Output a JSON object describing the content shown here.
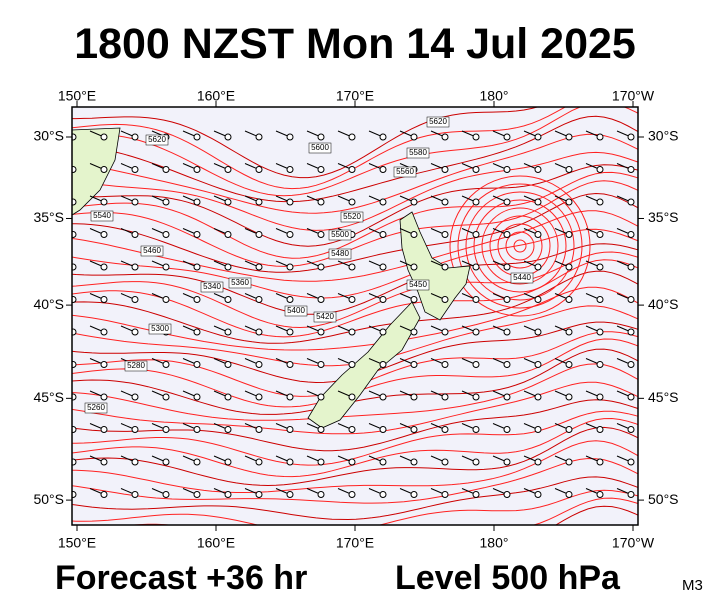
{
  "title": "1800 NZST Mon 14 Jul 2025",
  "forecast": "Forecast +36 hr",
  "level": "Level 500 hPa",
  "model": "M3",
  "lon_ticks": [
    {
      "value": 150,
      "label": "150°E"
    },
    {
      "value": 160,
      "label": "160°E"
    },
    {
      "value": 170,
      "label": "170°E"
    },
    {
      "value": 180,
      "label": "180°"
    },
    {
      "value": 190,
      "label": "170°W"
    }
  ],
  "lat_ticks": [
    {
      "value": 30,
      "label": "30°S"
    },
    {
      "value": 35,
      "label": "35°S"
    },
    {
      "value": 40,
      "label": "40°S"
    },
    {
      "value": 45,
      "label": "45°S"
    },
    {
      "value": 50,
      "label": "50°S"
    }
  ],
  "contour_labels": [
    "5620",
    "5620",
    "5600",
    "5580",
    "5560",
    "5540",
    "5520",
    "5500",
    "5480",
    "5460",
    "5450",
    "5440",
    "5420",
    "5400",
    "5360",
    "5340",
    "5300",
    "5280",
    "5260"
  ]
}
